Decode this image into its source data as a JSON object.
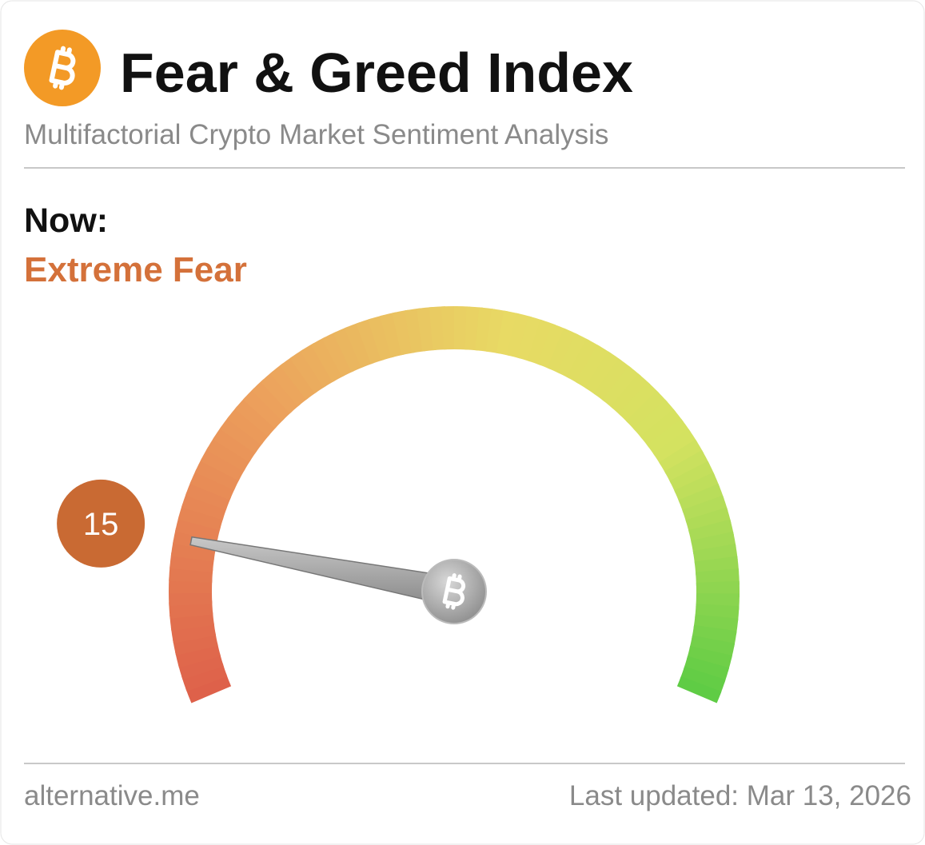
{
  "header": {
    "title": "Fear & Greed Index",
    "subtitle": "Multifactorial Crypto Market Sentiment Analysis"
  },
  "status": {
    "label": "Now:",
    "classification": "Extreme Fear"
  },
  "chart_data": {
    "type": "gauge",
    "value": 15,
    "range": [
      0,
      100
    ],
    "color": "#c96a33"
  },
  "footer": {
    "source": "alternative.me",
    "updated": "Last updated: Mar 13, 2026"
  }
}
